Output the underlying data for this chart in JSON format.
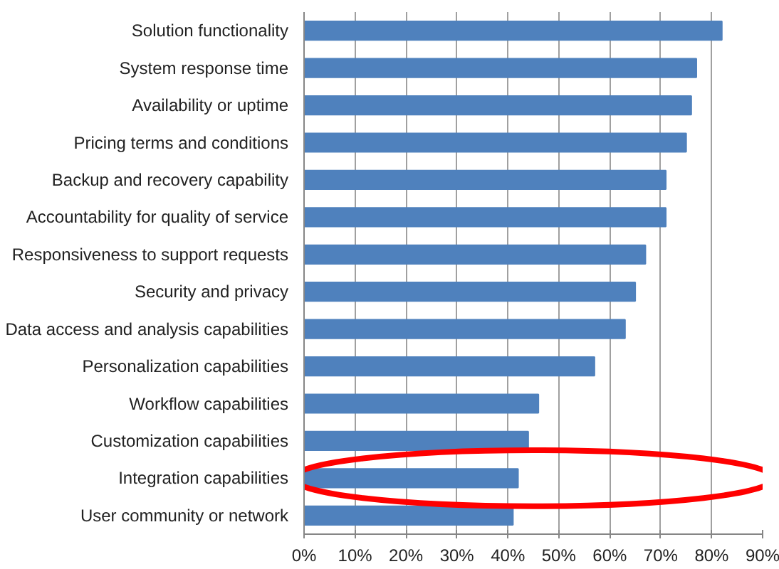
{
  "chart_data": {
    "type": "bar",
    "orientation": "horizontal",
    "categories": [
      "Solution functionality",
      "System response time",
      "Availability or uptime",
      "Pricing terms and conditions",
      "Backup and recovery capability",
      "Accountability for quality of service",
      "Responsiveness to support requests",
      "Security and privacy",
      "Data access and analysis capabilities",
      "Personalization capabilities",
      "Workflow capabilities",
      "Customization capabilities",
      "Integration capabilities",
      "User community or network"
    ],
    "values": [
      82,
      77,
      76,
      75,
      71,
      71,
      67,
      65,
      63,
      57,
      46,
      44,
      42,
      41
    ],
    "color": "#4f81bd",
    "xlim": [
      0,
      90
    ],
    "xticks": [
      {
        "value": 0,
        "label": "0%"
      },
      {
        "value": 10,
        "label": "10%"
      },
      {
        "value": 20,
        "label": "20%"
      },
      {
        "value": 30,
        "label": "30%"
      },
      {
        "value": 40,
        "label": "40%"
      },
      {
        "value": 50,
        "label": "50%"
      },
      {
        "value": 60,
        "label": "60%"
      },
      {
        "value": 70,
        "label": "70%"
      },
      {
        "value": 80,
        "label": "80%"
      },
      {
        "value": 90,
        "label": "90%"
      }
    ],
    "grid": "x"
  }
}
